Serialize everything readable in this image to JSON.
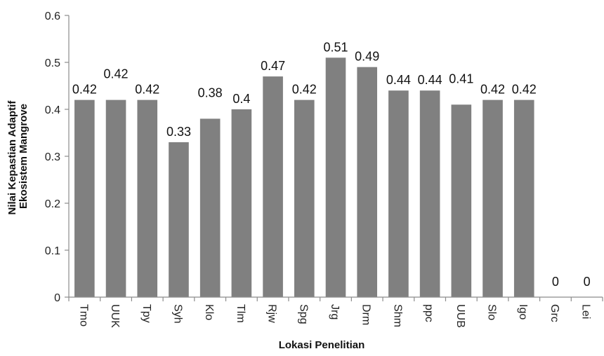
{
  "chart_data": {
    "type": "bar",
    "categories": [
      "Tmo",
      "UUK",
      "Tpy",
      "Syh",
      "Klo",
      "Tlm",
      "Rjw",
      "Spg",
      "Jrg",
      "Drm",
      "Shm",
      "ppc",
      "UUB",
      "Slo",
      "Igo",
      "Grc",
      "Lei"
    ],
    "values": [
      0.42,
      0.42,
      0.42,
      0.33,
      0.38,
      0.4,
      0.47,
      0.42,
      0.51,
      0.49,
      0.44,
      0.44,
      0.41,
      0.42,
      0.42,
      0,
      0
    ],
    "data_labels": [
      "0.42",
      "0.42",
      "0.42",
      "0.33",
      "0.38",
      "0.4",
      "0.47",
      "0.42",
      "0.51",
      "0.49",
      "0.44",
      "0.44",
      "0.41",
      "0.42",
      "0.42",
      "0",
      "0"
    ],
    "title": "",
    "xlabel": "Lokasi Penelitian",
    "ylabel_lines": [
      "Nilai Kepastian Adaptif",
      "Ekosistem  Mangrove"
    ],
    "ylim": [
      0,
      0.6
    ],
    "yticks": [
      "0",
      "0.1",
      "0.2",
      "0.3",
      "0.4",
      "0.5",
      "0.6"
    ],
    "grid": false,
    "legend": "none",
    "bar_color": "#808080",
    "axis_color": "#8c8c8c"
  }
}
